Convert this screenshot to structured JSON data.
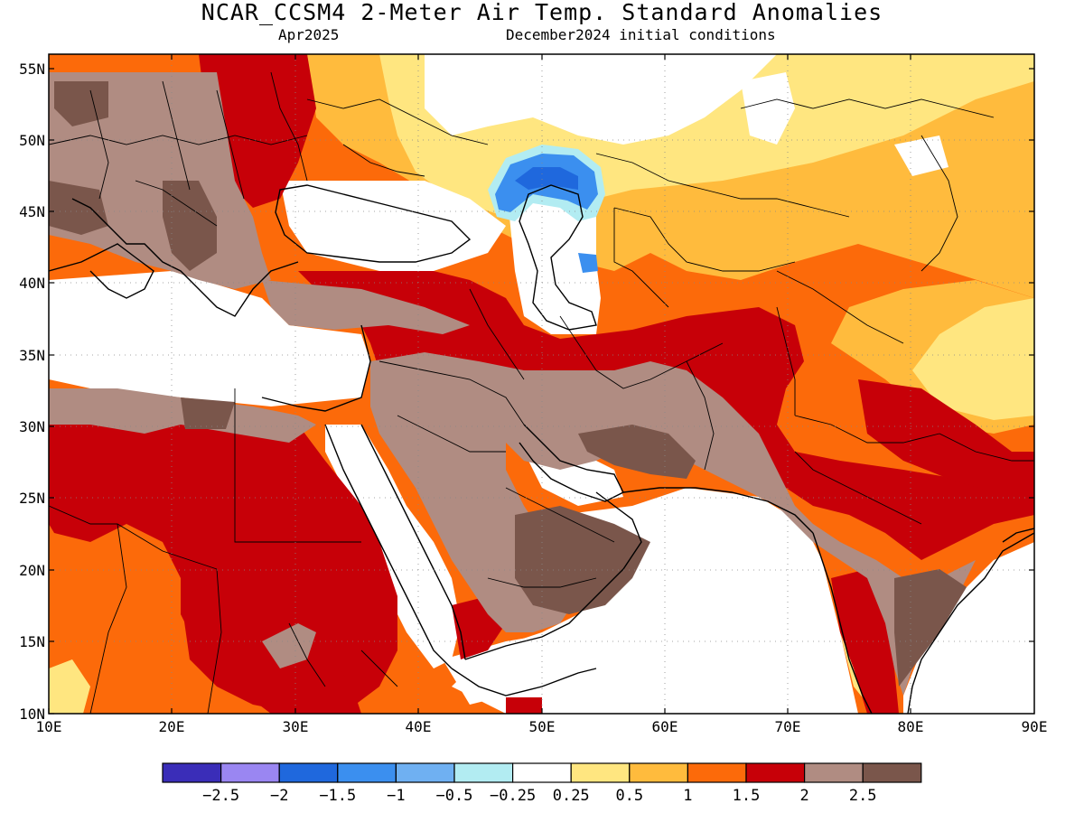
{
  "header": {
    "title": "NCAR_CCSM4 2-Meter Air Temp. Standard Anomalies",
    "valid_month": "Apr2025",
    "init": "December2024 initial conditions"
  },
  "axes": {
    "lon_labels": [
      "10E",
      "20E",
      "30E",
      "40E",
      "50E",
      "60E",
      "70E",
      "80E",
      "90E"
    ],
    "lat_labels": [
      "55N",
      "50N",
      "45N",
      "40N",
      "35N",
      "30N",
      "25N",
      "20N",
      "15N",
      "10N"
    ]
  },
  "colorbar": {
    "colors": [
      "#3a2db8",
      "#9a86f2",
      "#1f68dd",
      "#3b8fef",
      "#6fb0f2",
      "#b2ecf2",
      "#ffffff",
      "#ffe680",
      "#ffbb3d",
      "#fc6a0a",
      "#c70008",
      "#b08c82",
      "#7a564b"
    ],
    "labels": [
      "−2.5",
      "−2",
      "−1.5",
      "−1",
      "−0.5",
      "−0.25",
      "0.25",
      "0.5",
      "1",
      "1.5",
      "2",
      "2.5"
    ]
  },
  "legend_colors": {
    "white": "#ffffff",
    "yellow": "#ffe680",
    "light_orange": "#ffbb3d",
    "orange": "#fc6a0a",
    "red": "#c70008",
    "brown": "#b08c82",
    "dark_brown": "#7a564b",
    "blue": "#1f68dd",
    "mid_blue": "#3b8fef",
    "light_blue": "#b2ecf2"
  }
}
